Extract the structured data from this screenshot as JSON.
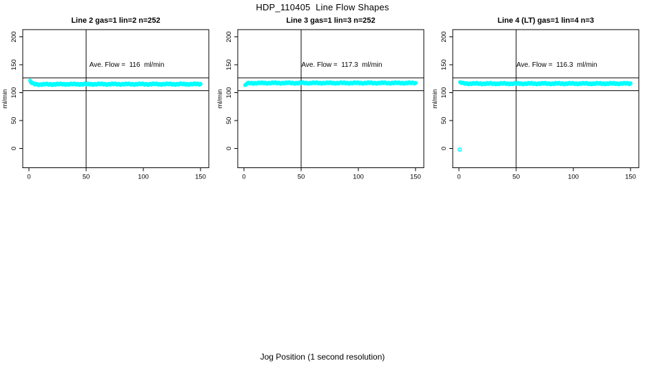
{
  "title": "HDP_110405  Line Flow Shapes",
  "xlabel": "Jog Position (1 second resolution)",
  "colors": {
    "points": "#00FFFF",
    "axis": "#000000",
    "background": "#FFFFFF"
  },
  "point_step": 0.5,
  "chart_data": [
    {
      "type": "scatter",
      "title": "Line 2 gas=1 lin=2 n=252",
      "n": 252,
      "ave_flow": 116,
      "ave_flow_label": "Ave. Flow =  116  ml/min",
      "ylabel": "ml/min",
      "xticks": [
        0,
        50,
        100,
        150
      ],
      "yticks": [
        0,
        50,
        100,
        150,
        200
      ],
      "xlim": [
        -5,
        157
      ],
      "ylim": [
        -35,
        213
      ],
      "hlines": [
        126.5,
        103.5
      ],
      "vline": 50,
      "band_keypoints": [
        [
          1,
          121.5
        ],
        [
          1.5,
          119.5
        ],
        [
          2,
          118
        ],
        [
          3,
          116.3
        ],
        [
          4,
          115.6
        ],
        [
          6,
          115
        ],
        [
          10,
          114.8
        ],
        [
          30,
          115.2
        ],
        [
          150,
          115.3
        ]
      ],
      "outlier_points": []
    },
    {
      "type": "scatter",
      "title": "Line 3 gas=1 lin=3 n=252",
      "n": 252,
      "ave_flow": 117.3,
      "ave_flow_label": "Ave. Flow =  117.3  ml/min",
      "ylabel": "ml/min",
      "xticks": [
        0,
        50,
        100,
        150
      ],
      "yticks": [
        0,
        50,
        100,
        150,
        200
      ],
      "xlim": [
        -5,
        157
      ],
      "ylim": [
        -35,
        213
      ],
      "hlines": [
        126.5,
        103.5
      ],
      "vline": 50,
      "band_keypoints": [
        [
          1,
          113.5
        ],
        [
          2,
          115
        ],
        [
          3,
          116.3
        ],
        [
          5,
          117
        ],
        [
          20,
          117.3
        ],
        [
          150,
          117.3
        ]
      ],
      "outlier_points": []
    },
    {
      "type": "scatter",
      "title": "Line 4 (LT) gas=1 lin=4 n=3",
      "n": 3,
      "ave_flow": 116.3,
      "ave_flow_label": "Ave. Flow =  116.3  ml/min",
      "ylabel": "ml/min",
      "xticks": [
        0,
        50,
        100,
        150
      ],
      "yticks": [
        0,
        50,
        100,
        150,
        200
      ],
      "xlim": [
        -5,
        157
      ],
      "ylim": [
        -35,
        213
      ],
      "hlines": [
        126.5,
        103.5
      ],
      "vline": 50,
      "band_keypoints": [
        [
          1,
          118.8
        ],
        [
          2,
          117.5
        ],
        [
          4,
          116.4
        ],
        [
          20,
          116.2
        ],
        [
          150,
          116.3
        ]
      ],
      "outlier_points": [
        [
          0.7,
          -2
        ]
      ]
    }
  ]
}
